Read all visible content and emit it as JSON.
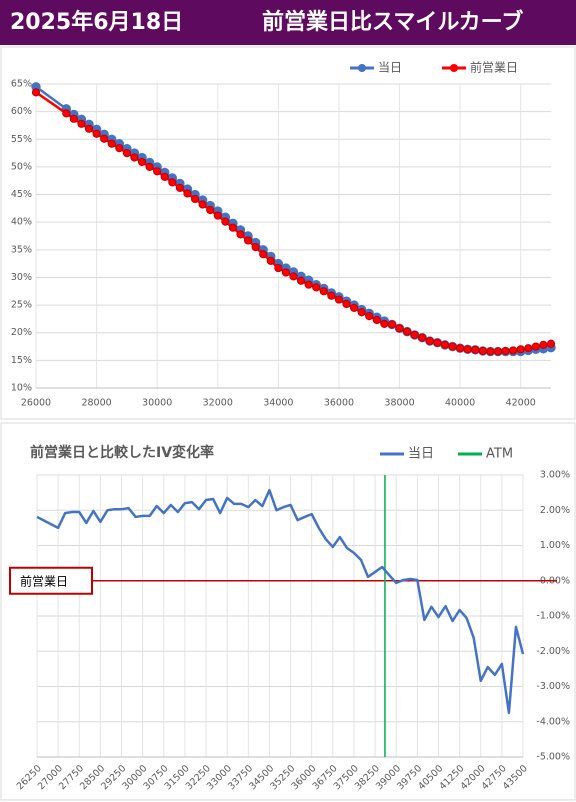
{
  "header": {
    "date": "2025年6月18日",
    "title": "前営業日比スマイルカーブ"
  },
  "chart_data": [
    {
      "type": "line",
      "markers": true,
      "grid": true,
      "legend": "top-right",
      "xlim": [
        26000,
        43000
      ],
      "xticks": [
        26000,
        28000,
        30000,
        32000,
        34000,
        36000,
        38000,
        40000,
        42000
      ],
      "ylim": [
        10,
        65
      ],
      "yticks": [
        {
          "value": 10,
          "label": "10%"
        },
        {
          "value": 15,
          "label": "15%"
        },
        {
          "value": 20,
          "label": "20%"
        },
        {
          "value": 25,
          "label": "25%"
        },
        {
          "value": 30,
          "label": "30%"
        },
        {
          "value": 35,
          "label": "35%"
        },
        {
          "value": 40,
          "label": "40%"
        },
        {
          "value": 45,
          "label": "45%"
        },
        {
          "value": 50,
          "label": "50%"
        },
        {
          "value": 55,
          "label": "55%"
        },
        {
          "value": 60,
          "label": "60%"
        },
        {
          "value": 65,
          "label": "65%"
        }
      ],
      "x": [
        26000,
        27000,
        27250,
        27500,
        27750,
        28000,
        28250,
        28500,
        28750,
        29000,
        29250,
        29500,
        29750,
        30000,
        30250,
        30500,
        30750,
        31000,
        31250,
        31500,
        31750,
        32000,
        32250,
        32500,
        32750,
        33000,
        33250,
        33500,
        33750,
        34000,
        34250,
        34500,
        34750,
        35000,
        35250,
        35500,
        35750,
        36000,
        36250,
        36500,
        36750,
        37000,
        37250,
        37500,
        37750,
        38000,
        38250,
        38500,
        38750,
        39000,
        39250,
        39500,
        39750,
        40000,
        40250,
        40500,
        40750,
        41000,
        41250,
        41500,
        41750,
        42000,
        42250,
        42500,
        42750,
        43000
      ],
      "series": [
        {
          "name": "当日",
          "color": "#4472c4",
          "values": [
            64.5,
            60.5,
            59.5,
            58.6,
            57.7,
            56.8,
            55.9,
            55.0,
            54.2,
            53.3,
            52.5,
            51.7,
            50.8,
            50.0,
            49.0,
            48.0,
            47.0,
            46.0,
            45.0,
            44.0,
            43.0,
            42.0,
            40.9,
            39.8,
            38.6,
            37.5,
            36.3,
            35.0,
            33.8,
            32.5,
            31.7,
            31.0,
            30.2,
            29.5,
            28.7,
            28.0,
            27.2,
            26.5,
            25.7,
            25.0,
            24.2,
            23.5,
            22.8,
            22.1,
            21.5,
            20.8,
            20.2,
            19.6,
            19.1,
            18.5,
            18.2,
            17.8,
            17.5,
            17.2,
            17.0,
            16.9,
            16.7,
            16.6,
            16.6,
            16.6,
            16.6,
            16.6,
            16.8,
            17.0,
            17.1,
            17.3
          ]
        },
        {
          "name": "前営業日",
          "color": "#ff0000",
          "values": [
            63.5,
            59.7,
            58.7,
            57.8,
            56.9,
            56.0,
            55.1,
            54.2,
            53.4,
            52.5,
            51.7,
            50.9,
            50.0,
            49.2,
            48.2,
            47.2,
            46.2,
            45.2,
            44.2,
            43.2,
            42.2,
            41.2,
            40.1,
            39.0,
            37.8,
            36.7,
            35.5,
            34.2,
            33.0,
            31.7,
            30.9,
            30.2,
            29.4,
            28.7,
            28.2,
            27.5,
            26.7,
            26.0,
            25.2,
            24.5,
            23.7,
            23.0,
            22.3,
            21.6,
            21.5,
            20.8,
            20.2,
            19.6,
            19.1,
            18.5,
            18.2,
            17.8,
            17.5,
            17.2,
            17.0,
            16.9,
            16.7,
            16.6,
            16.6,
            16.7,
            16.8,
            17.0,
            17.2,
            17.5,
            17.8,
            18.0
          ]
        }
      ]
    },
    {
      "type": "line",
      "markers": false,
      "grid": true,
      "legend": "top-right",
      "title": "前営業日と比較したIV変化率",
      "y_axis_side": "right",
      "xlim": [
        26250,
        43500
      ],
      "xticks": [
        26250,
        27000,
        27750,
        28500,
        29250,
        30000,
        30750,
        31500,
        32250,
        33000,
        33750,
        34500,
        35250,
        36000,
        36750,
        37500,
        38250,
        39000,
        39750,
        40500,
        41250,
        42000,
        42750,
        43500
      ],
      "ylim": [
        -5,
        3
      ],
      "yticks": [
        {
          "value": 3,
          "label": "3.00%"
        },
        {
          "value": 2,
          "label": "2.00%"
        },
        {
          "value": 1,
          "label": "1.00%"
        },
        {
          "value": 0,
          "label": "0.00%"
        },
        {
          "value": -1,
          "label": "-1.00%"
        },
        {
          "value": -2,
          "label": "-2.00%"
        },
        {
          "value": -3,
          "label": "-3.00%"
        },
        {
          "value": -4,
          "label": "-4.00%"
        },
        {
          "value": -5,
          "label": "-5.00%"
        }
      ],
      "x": [
        26250,
        27000,
        27250,
        27500,
        27750,
        28000,
        28250,
        28500,
        28750,
        29000,
        29250,
        29500,
        29750,
        30000,
        30250,
        30500,
        30750,
        31000,
        31250,
        31500,
        31750,
        32000,
        32250,
        32500,
        32750,
        33000,
        33250,
        33500,
        33750,
        34000,
        34250,
        34500,
        34750,
        35000,
        35250,
        35500,
        35750,
        36000,
        36250,
        36500,
        36750,
        37000,
        37250,
        37500,
        37750,
        38000,
        38250,
        38500,
        38750,
        39000,
        39250,
        39500,
        39750,
        40000,
        40250,
        40500,
        40750,
        41000,
        41250,
        41500,
        41750,
        42000,
        42250,
        42500,
        42750,
        43000,
        43250,
        43500
      ],
      "series": [
        {
          "name": "当日",
          "color": "#4472c4",
          "values": [
            1.81,
            1.5,
            1.92,
            1.95,
            1.95,
            1.64,
            1.98,
            1.67,
            2.0,
            2.03,
            2.03,
            2.06,
            1.81,
            1.84,
            1.84,
            2.12,
            1.92,
            2.15,
            1.95,
            2.2,
            2.23,
            2.03,
            2.29,
            2.32,
            1.92,
            2.35,
            2.18,
            2.18,
            2.09,
            2.29,
            2.12,
            2.57,
            2.0,
            2.09,
            2.15,
            1.72,
            1.81,
            1.89,
            1.5,
            1.18,
            0.96,
            1.24,
            0.93,
            0.79,
            0.59,
            0.11,
            0.25,
            0.39,
            0.16,
            -0.06,
            0.02,
            0.05,
            0.02,
            -1.11,
            -0.74,
            -1.03,
            -0.72,
            -1.14,
            -0.83,
            -1.06,
            -1.62,
            -2.84,
            -2.45,
            -2.67,
            -2.36,
            -3.75,
            -1.31,
            -2.08
          ]
        }
      ],
      "atm": {
        "name": "ATM",
        "value": 38600,
        "color": "#00b050"
      },
      "reference": {
        "label": "前営業日",
        "value": 0,
        "color": "#c00000"
      }
    }
  ]
}
